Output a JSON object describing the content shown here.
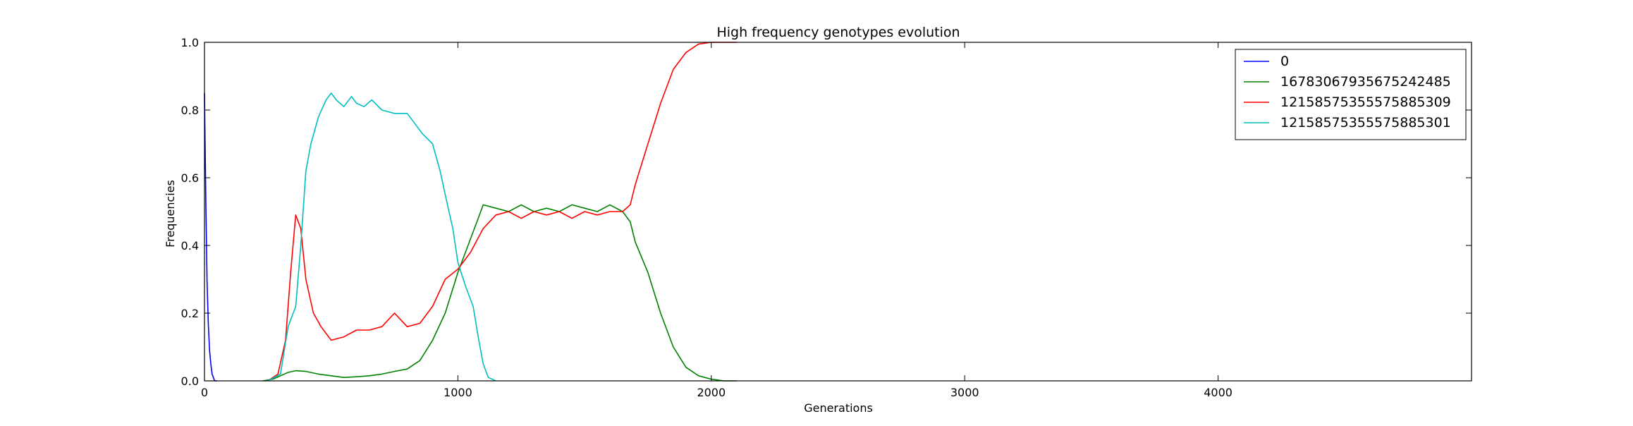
{
  "chart_data": {
    "type": "line",
    "title": "High frequency genotypes evolution",
    "xlabel": "Generations",
    "ylabel": "Frequencies",
    "xlim": [
      0,
      5000
    ],
    "ylim": [
      0,
      1.0
    ],
    "xticks": [
      0,
      1000,
      2000,
      3000,
      4000
    ],
    "xtick_labels": [
      "0",
      "1000",
      "2000",
      "3000",
      "4000"
    ],
    "yticks": [
      0.0,
      0.2,
      0.4,
      0.6,
      0.8,
      1.0
    ],
    "ytick_labels": [
      "0.0",
      "0.2",
      "0.4",
      "0.6",
      "0.8",
      "1.0"
    ],
    "grid": false,
    "legend_position": "top-right",
    "series": [
      {
        "name": "0",
        "color": "#0000ff",
        "x": [
          0,
          5,
          10,
          15,
          20,
          25,
          30,
          35,
          40,
          50
        ],
        "y": [
          0.85,
          0.55,
          0.3,
          0.17,
          0.09,
          0.05,
          0.02,
          0.01,
          0.0,
          0.0
        ]
      },
      {
        "name": "16783067935675242485",
        "color": "#008000",
        "x": [
          230,
          270,
          300,
          330,
          360,
          400,
          450,
          500,
          550,
          600,
          650,
          700,
          750,
          800,
          850,
          900,
          950,
          1000,
          1050,
          1080,
          1100,
          1150,
          1200,
          1250,
          1300,
          1350,
          1400,
          1450,
          1500,
          1550,
          1600,
          1650,
          1680,
          1700,
          1750,
          1800,
          1850,
          1900,
          1950,
          2000,
          2050,
          2100
        ],
        "y": [
          0.0,
          0.005,
          0.015,
          0.025,
          0.03,
          0.028,
          0.02,
          0.015,
          0.01,
          0.012,
          0.015,
          0.02,
          0.028,
          0.035,
          0.06,
          0.12,
          0.2,
          0.32,
          0.42,
          0.48,
          0.52,
          0.51,
          0.5,
          0.52,
          0.5,
          0.51,
          0.5,
          0.52,
          0.51,
          0.5,
          0.52,
          0.5,
          0.47,
          0.41,
          0.32,
          0.2,
          0.1,
          0.04,
          0.015,
          0.005,
          0.0,
          0.0
        ]
      },
      {
        "name": "12158575355575885309",
        "color": "#ff0000",
        "x": [
          250,
          290,
          320,
          340,
          360,
          380,
          400,
          430,
          460,
          500,
          550,
          600,
          650,
          700,
          750,
          800,
          850,
          900,
          950,
          1000,
          1050,
          1100,
          1150,
          1200,
          1250,
          1300,
          1350,
          1400,
          1450,
          1500,
          1550,
          1600,
          1650,
          1680,
          1700,
          1750,
          1800,
          1850,
          1900,
          1950,
          2000,
          2050,
          2100
        ],
        "y": [
          0.0,
          0.02,
          0.12,
          0.32,
          0.49,
          0.45,
          0.3,
          0.2,
          0.16,
          0.12,
          0.13,
          0.15,
          0.15,
          0.16,
          0.2,
          0.16,
          0.17,
          0.22,
          0.3,
          0.33,
          0.38,
          0.45,
          0.49,
          0.5,
          0.48,
          0.5,
          0.49,
          0.5,
          0.48,
          0.5,
          0.49,
          0.5,
          0.5,
          0.52,
          0.58,
          0.7,
          0.82,
          0.92,
          0.97,
          0.995,
          1.0,
          1.0,
          1.0
        ]
      },
      {
        "name": "12158575355575885301",
        "color": "#00bfbf",
        "x": [
          250,
          300,
          330,
          360,
          380,
          400,
          420,
          450,
          480,
          500,
          520,
          550,
          580,
          600,
          630,
          660,
          700,
          750,
          800,
          830,
          860,
          900,
          930,
          950,
          980,
          1000,
          1030,
          1060,
          1080,
          1100,
          1120,
          1150
        ],
        "y": [
          0.0,
          0.02,
          0.16,
          0.22,
          0.4,
          0.62,
          0.7,
          0.78,
          0.83,
          0.85,
          0.83,
          0.81,
          0.84,
          0.82,
          0.81,
          0.83,
          0.8,
          0.79,
          0.79,
          0.76,
          0.73,
          0.7,
          0.62,
          0.55,
          0.45,
          0.35,
          0.28,
          0.22,
          0.13,
          0.05,
          0.01,
          0.0
        ]
      }
    ]
  }
}
